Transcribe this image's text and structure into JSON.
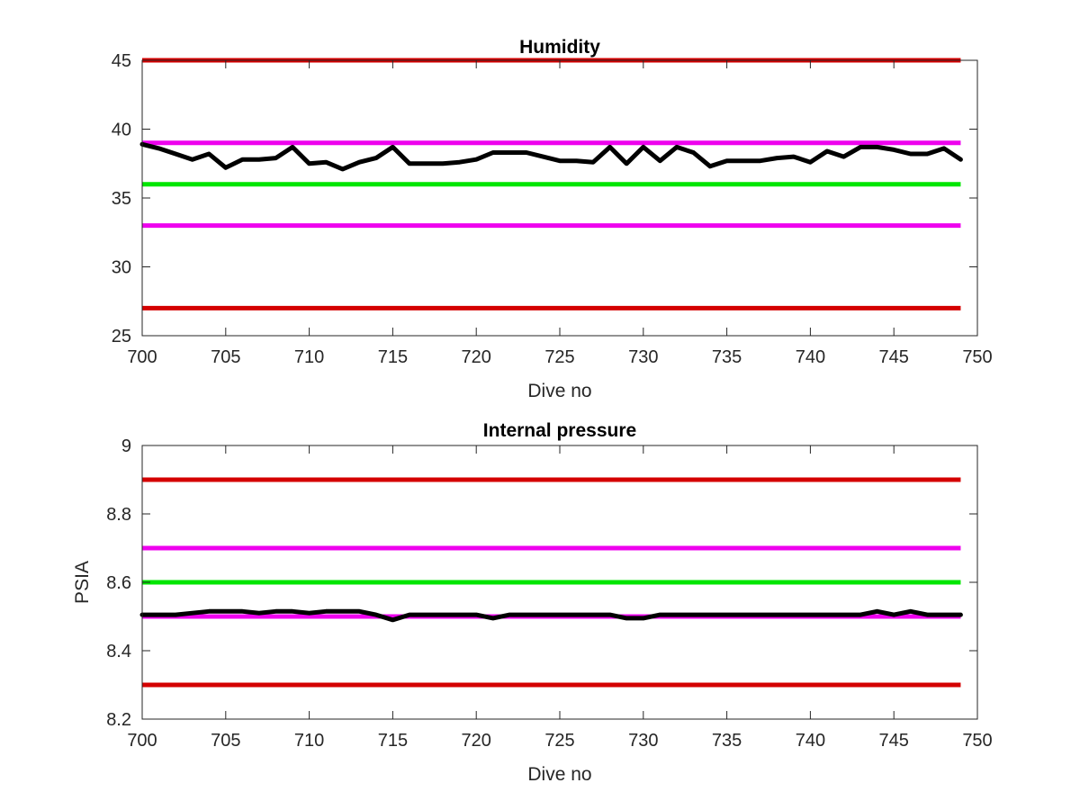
{
  "chart_data": [
    {
      "type": "line",
      "title": "Humidity",
      "xlabel": "Dive no",
      "ylabel": "",
      "xlim": [
        700,
        750
      ],
      "ylim": [
        25,
        45
      ],
      "xticks": [
        700,
        705,
        710,
        715,
        720,
        725,
        730,
        735,
        740,
        745,
        750
      ],
      "yticks": [
        25,
        30,
        35,
        40,
        45
      ],
      "grid": false,
      "limit_lines": [
        {
          "value": 45,
          "color": "#d40000"
        },
        {
          "value": 39,
          "color": "#ee00ee"
        },
        {
          "value": 36,
          "color": "#00e600"
        },
        {
          "value": 33,
          "color": "#ee00ee"
        },
        {
          "value": 27,
          "color": "#d40000"
        }
      ],
      "limit_x_range": [
        700,
        749
      ],
      "series": [
        {
          "color": "#000000",
          "x": [
            700,
            701,
            702,
            703,
            704,
            705,
            706,
            707,
            708,
            709,
            710,
            711,
            712,
            713,
            714,
            715,
            716,
            717,
            718,
            719,
            720,
            721,
            722,
            723,
            724,
            725,
            726,
            727,
            728,
            729,
            730,
            731,
            732,
            733,
            734,
            735,
            736,
            737,
            738,
            739,
            740,
            741,
            742,
            743,
            744,
            745,
            746,
            747,
            748,
            749
          ],
          "values": [
            38.9,
            38.6,
            38.2,
            37.8,
            38.2,
            37.2,
            37.8,
            37.8,
            37.9,
            38.7,
            37.5,
            37.6,
            37.1,
            37.6,
            37.9,
            38.7,
            37.5,
            37.5,
            37.5,
            37.6,
            37.8,
            38.3,
            38.3,
            38.3,
            38.0,
            37.7,
            37.7,
            37.6,
            38.7,
            37.5,
            38.7,
            37.7,
            38.7,
            38.3,
            37.3,
            37.7,
            37.7,
            37.7,
            37.9,
            38.0,
            37.6,
            38.4,
            38.0,
            38.7,
            38.7,
            38.5,
            38.2,
            38.2,
            38.6,
            37.8
          ]
        }
      ]
    },
    {
      "type": "line",
      "title": "Internal pressure",
      "xlabel": "Dive no",
      "ylabel": "PSIA",
      "xlim": [
        700,
        750
      ],
      "ylim": [
        8.2,
        9
      ],
      "xticks": [
        700,
        705,
        710,
        715,
        720,
        725,
        730,
        735,
        740,
        745,
        750
      ],
      "yticks": [
        8.2,
        8.4,
        8.6,
        8.8,
        9
      ],
      "grid": false,
      "limit_lines": [
        {
          "value": 8.9,
          "color": "#d40000"
        },
        {
          "value": 8.7,
          "color": "#ee00ee"
        },
        {
          "value": 8.6,
          "color": "#00e600"
        },
        {
          "value": 8.5,
          "color": "#ee00ee"
        },
        {
          "value": 8.3,
          "color": "#d40000"
        }
      ],
      "limit_x_range": [
        700,
        749
      ],
      "series": [
        {
          "color": "#000000",
          "x": [
            700,
            701,
            702,
            703,
            704,
            705,
            706,
            707,
            708,
            709,
            710,
            711,
            712,
            713,
            714,
            715,
            716,
            717,
            718,
            719,
            720,
            721,
            722,
            723,
            724,
            725,
            726,
            727,
            728,
            729,
            730,
            731,
            732,
            733,
            734,
            735,
            736,
            737,
            738,
            739,
            740,
            741,
            742,
            743,
            744,
            745,
            746,
            747,
            748,
            749
          ],
          "values": [
            8.505,
            8.505,
            8.505,
            8.51,
            8.515,
            8.515,
            8.515,
            8.51,
            8.515,
            8.515,
            8.51,
            8.515,
            8.515,
            8.515,
            8.505,
            8.49,
            8.505,
            8.505,
            8.505,
            8.505,
            8.505,
            8.495,
            8.505,
            8.505,
            8.505,
            8.505,
            8.505,
            8.505,
            8.505,
            8.495,
            8.495,
            8.505,
            8.505,
            8.505,
            8.505,
            8.505,
            8.505,
            8.505,
            8.505,
            8.505,
            8.505,
            8.505,
            8.505,
            8.505,
            8.515,
            8.505,
            8.515,
            8.505,
            8.505,
            8.505
          ]
        }
      ]
    }
  ]
}
